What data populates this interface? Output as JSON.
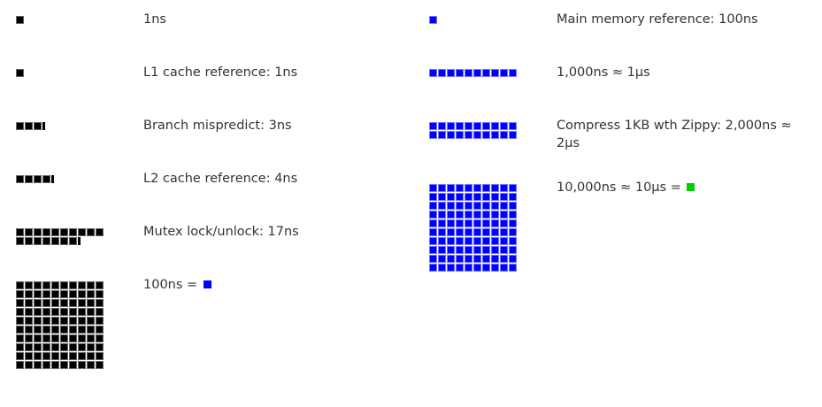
{
  "colors": {
    "ns": "#000000",
    "ns_border": "#666666",
    "hundred_ns": "#0000ff",
    "hundred_ns_border": "#7777ff",
    "ten_us": "#00cc00"
  },
  "left": [
    {
      "label": "1ns",
      "count": 1,
      "partial": 0,
      "unit": "ns"
    },
    {
      "label": "L1 cache reference: 1ns",
      "count": 1,
      "partial": 0,
      "unit": "ns"
    },
    {
      "label": "Branch mispredict: 3ns",
      "count": 3,
      "partial": 0.3,
      "unit": "ns"
    },
    {
      "label": "L2 cache reference: 4ns",
      "count": 4,
      "partial": 0.3,
      "unit": "ns"
    },
    {
      "label": "Mutex lock/unlock: 17ns",
      "count": 17,
      "partial": 0.3,
      "unit": "ns"
    },
    {
      "label": "100ns = ",
      "count": 100,
      "partial": 0,
      "unit": "ns",
      "equals": "hundred_ns"
    }
  ],
  "right": [
    {
      "label": "Main memory reference: 100ns",
      "count": 1,
      "partial": 0,
      "unit": "hundred_ns"
    },
    {
      "label": "1,000ns ≈ 1μs",
      "count": 10,
      "partial": 0,
      "unit": "hundred_ns"
    },
    {
      "label": "Compress 1KB wth Zippy: 2,000ns ≈ 2μs",
      "count": 20,
      "partial": 0,
      "unit": "hundred_ns"
    },
    {
      "label": "10,000ns ≈ 10μs = ",
      "count": 100,
      "partial": 0,
      "unit": "hundred_ns",
      "equals": "ten_us"
    }
  ]
}
